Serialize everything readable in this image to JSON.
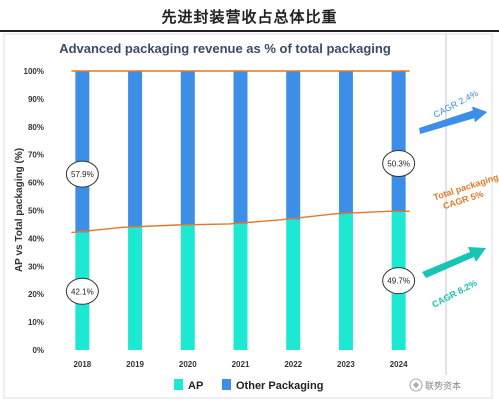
{
  "header": {
    "title": "先进封装营收占总体比重"
  },
  "watermark": {
    "text": "联势资本"
  },
  "chart_data": {
    "type": "bar",
    "stacked": true,
    "title": "Advanced packaging revenue as % of total packaging",
    "ylabel": "AP vs Total packaging (%)",
    "xlabel": "",
    "categories": [
      "2018",
      "2019",
      "2020",
      "2021",
      "2022",
      "2023",
      "2024"
    ],
    "ylim": [
      0,
      100
    ],
    "yticks": [
      "0%",
      "10%",
      "20%",
      "30%",
      "40%",
      "50%",
      "60%",
      "70%",
      "80%",
      "90%",
      "100%"
    ],
    "series": [
      {
        "name": "AP",
        "values": [
          42.1,
          44.0,
          44.8,
          45.2,
          46.7,
          48.8,
          49.7
        ],
        "color": "#1de9d2"
      },
      {
        "name": "Other Packaging",
        "values": [
          57.9,
          56.0,
          55.2,
          54.8,
          53.3,
          51.2,
          50.3
        ],
        "color": "#3d8ee6"
      }
    ],
    "line": {
      "values": [
        42.1,
        44.0,
        44.8,
        45.2,
        46.7,
        48.8,
        49.7
      ],
      "color": "#e07a2a"
    },
    "data_labels": [
      {
        "text": "57.9%",
        "category": "2018",
        "series": "Other Packaging"
      },
      {
        "text": "42.1%",
        "category": "2018",
        "series": "AP"
      },
      {
        "text": "50.3%",
        "category": "2024",
        "series": "Other Packaging"
      },
      {
        "text": "49.7%",
        "category": "2024",
        "series": "AP"
      }
    ],
    "annotations": {
      "cagr_other": "CAGR 2.4%",
      "total_line1": "Total packaging",
      "total_line2": "CAGR 5%",
      "cagr_ap": "CAGR 8.2%"
    },
    "legend": {
      "position": "bottom",
      "entries": [
        "AP",
        "Other Packaging"
      ]
    },
    "grid": false
  }
}
